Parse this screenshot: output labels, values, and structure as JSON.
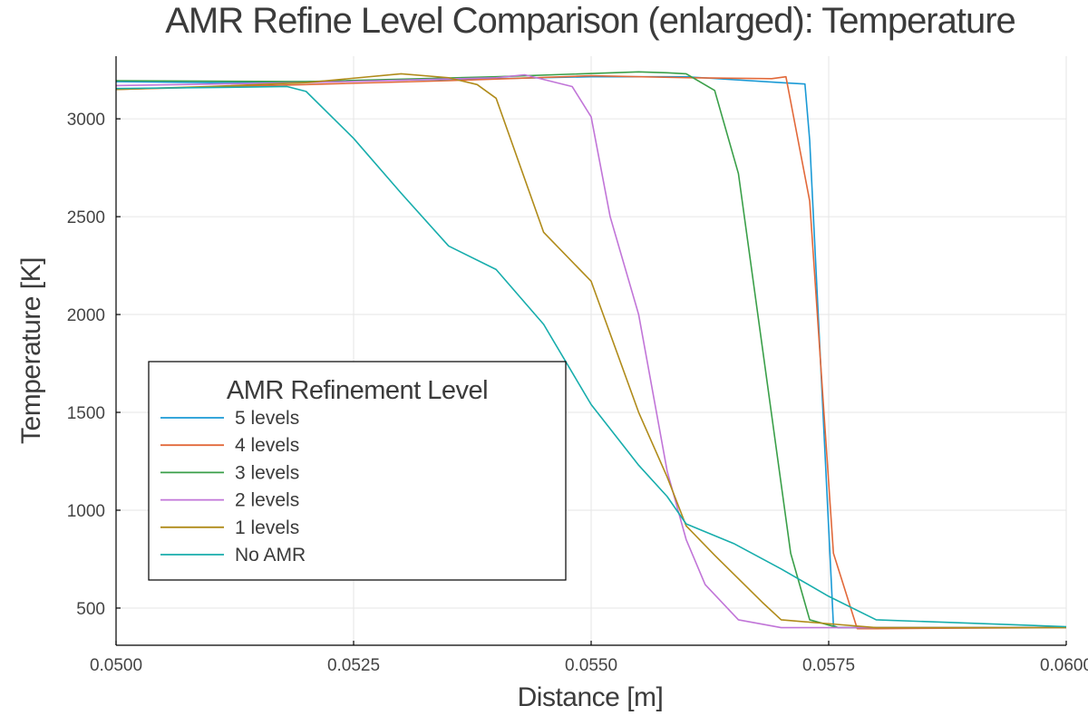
{
  "chart_data": {
    "type": "line",
    "title": "AMR Refine Level Comparison (enlarged): Temperature",
    "xlabel": "Distance [m]",
    "ylabel": "Temperature [K]",
    "xlim": [
      0.05,
      0.06
    ],
    "ylim": [
      310,
      3320
    ],
    "xticks": [
      {
        "value": 0.05,
        "label": "0.0500"
      },
      {
        "value": 0.0525,
        "label": "0.0525"
      },
      {
        "value": 0.055,
        "label": "0.0550"
      },
      {
        "value": 0.0575,
        "label": "0.0575"
      },
      {
        "value": 0.06,
        "label": "0.0600"
      }
    ],
    "yticks": [
      {
        "value": 500,
        "label": "500"
      },
      {
        "value": 1000,
        "label": "1000"
      },
      {
        "value": 1500,
        "label": "1500"
      },
      {
        "value": 2000,
        "label": "2000"
      },
      {
        "value": 2500,
        "label": "2500"
      },
      {
        "value": 3000,
        "label": "3000"
      }
    ],
    "grid": true,
    "legend": {
      "title": "AMR Refinement Level",
      "position": "bottom-left"
    },
    "series": [
      {
        "name": "5 levels",
        "color": "#1a9ad6",
        "points": [
          [
            0.05,
            3190
          ],
          [
            0.051,
            3185
          ],
          [
            0.052,
            3190
          ],
          [
            0.053,
            3198
          ],
          [
            0.054,
            3205
          ],
          [
            0.055,
            3215
          ],
          [
            0.056,
            3215
          ],
          [
            0.057,
            3185
          ],
          [
            0.05725,
            3178
          ],
          [
            0.0573,
            2890
          ],
          [
            0.05755,
            410
          ],
          [
            0.0576,
            400
          ],
          [
            0.058,
            400
          ],
          [
            0.06,
            400
          ]
        ]
      },
      {
        "name": "4 levels",
        "color": "#e2693a",
        "points": [
          [
            0.05,
            3150
          ],
          [
            0.052,
            3175
          ],
          [
            0.0535,
            3195
          ],
          [
            0.055,
            3220
          ],
          [
            0.056,
            3210
          ],
          [
            0.0569,
            3205
          ],
          [
            0.05705,
            3215
          ],
          [
            0.0573,
            2580
          ],
          [
            0.05755,
            780
          ],
          [
            0.0578,
            395
          ],
          [
            0.058,
            395
          ],
          [
            0.06,
            400
          ]
        ]
      },
      {
        "name": "3 levels",
        "color": "#3a9f49",
        "points": [
          [
            0.05,
            3195
          ],
          [
            0.052,
            3190
          ],
          [
            0.054,
            3215
          ],
          [
            0.0555,
            3240
          ],
          [
            0.0558,
            3235
          ],
          [
            0.056,
            3230
          ],
          [
            0.0563,
            3145
          ],
          [
            0.05655,
            2720
          ],
          [
            0.0571,
            780
          ],
          [
            0.0573,
            440
          ],
          [
            0.0576,
            400
          ],
          [
            0.058,
            400
          ],
          [
            0.06,
            400
          ]
        ]
      },
      {
        "name": "2 levels",
        "color": "#c175d8",
        "points": [
          [
            0.05,
            3170
          ],
          [
            0.052,
            3185
          ],
          [
            0.054,
            3210
          ],
          [
            0.0543,
            3225
          ],
          [
            0.0548,
            3165
          ],
          [
            0.055,
            3010
          ],
          [
            0.0552,
            2500
          ],
          [
            0.0555,
            2000
          ],
          [
            0.0558,
            1200
          ],
          [
            0.056,
            850
          ],
          [
            0.0562,
            620
          ],
          [
            0.05655,
            440
          ],
          [
            0.057,
            400
          ],
          [
            0.058,
            400
          ],
          [
            0.06,
            400
          ]
        ]
      },
      {
        "name": "1 levels",
        "color": "#b08b1a",
        "points": [
          [
            0.05,
            3150
          ],
          [
            0.051,
            3165
          ],
          [
            0.052,
            3185
          ],
          [
            0.053,
            3230
          ],
          [
            0.0535,
            3210
          ],
          [
            0.0538,
            3175
          ],
          [
            0.054,
            3105
          ],
          [
            0.0545,
            2420
          ],
          [
            0.055,
            2170
          ],
          [
            0.0555,
            1500
          ],
          [
            0.0558,
            1170
          ],
          [
            0.056,
            920
          ],
          [
            0.0563,
            770
          ],
          [
            0.0568,
            530
          ],
          [
            0.057,
            440
          ],
          [
            0.0575,
            420
          ],
          [
            0.058,
            400
          ],
          [
            0.06,
            400
          ]
        ]
      },
      {
        "name": "No AMR",
        "color": "#17adac",
        "points": [
          [
            0.05,
            3155
          ],
          [
            0.051,
            3160
          ],
          [
            0.0518,
            3165
          ],
          [
            0.052,
            3140
          ],
          [
            0.0525,
            2900
          ],
          [
            0.053,
            2620
          ],
          [
            0.0535,
            2350
          ],
          [
            0.054,
            2230
          ],
          [
            0.0545,
            1950
          ],
          [
            0.055,
            1540
          ],
          [
            0.0555,
            1230
          ],
          [
            0.0558,
            1070
          ],
          [
            0.056,
            930
          ],
          [
            0.0565,
            830
          ],
          [
            0.057,
            700
          ],
          [
            0.0575,
            560
          ],
          [
            0.058,
            440
          ],
          [
            0.06,
            405
          ]
        ]
      }
    ]
  }
}
